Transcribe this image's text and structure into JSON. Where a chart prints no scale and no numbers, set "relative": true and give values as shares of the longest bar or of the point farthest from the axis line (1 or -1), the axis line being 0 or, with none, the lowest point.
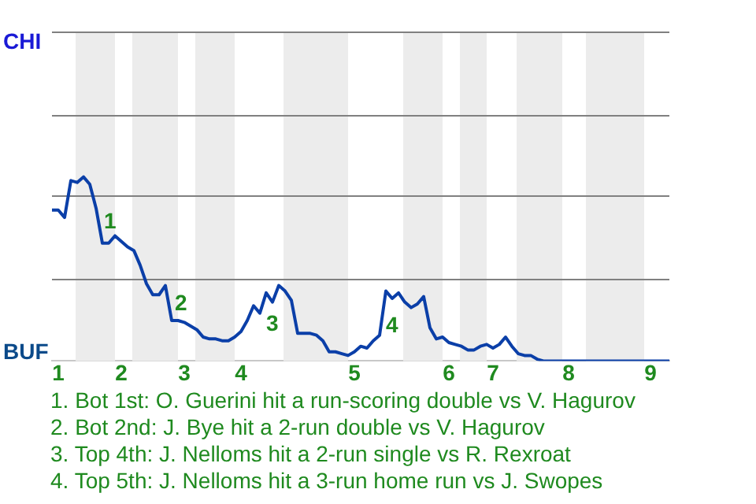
{
  "chart_data": {
    "type": "line",
    "relative": true,
    "categories": [
      null,
      "1",
      null,
      null,
      null,
      null,
      null,
      null,
      null,
      null,
      null,
      "2",
      null,
      null,
      null,
      null,
      null,
      null,
      null,
      null,
      null,
      "3",
      null,
      null,
      null,
      null,
      null,
      null,
      null,
      null,
      "4",
      null,
      null,
      null,
      null,
      null,
      null,
      null,
      null,
      null,
      null,
      null,
      null,
      null,
      null,
      null,
      null,
      null,
      "5",
      null,
      null,
      null,
      null,
      null,
      null,
      null,
      null,
      null,
      null,
      null,
      null,
      null,
      null,
      "6",
      null,
      null,
      null,
      null,
      null,
      null,
      "7",
      null,
      null,
      null,
      null,
      null,
      null,
      null,
      null,
      null,
      null,
      null,
      "8",
      null,
      null,
      null,
      null,
      null,
      null,
      null,
      null,
      null,
      null,
      null,
      null,
      "9",
      null,
      null,
      null
    ],
    "series": [
      {
        "color": "#0b3fa8",
        "values": [
          0.82,
          0.82,
          0.78,
          0.98,
          0.97,
          1,
          0.96,
          0.83,
          0.64,
          0.64,
          0.68,
          0.65,
          0.62,
          0.6,
          0.52,
          0.42,
          0.36,
          0.36,
          0.41,
          0.22,
          0.22,
          0.21,
          0.19,
          0.17,
          0.13,
          0.12,
          0.12,
          0.11,
          0.11,
          0.13,
          0.16,
          0.22,
          0.3,
          0.26,
          0.37,
          0.32,
          0.41,
          0.38,
          0.33,
          0.15,
          0.15,
          0.15,
          0.14,
          0.11,
          0.05,
          0.05,
          0.04,
          0.03,
          0.05,
          0.08,
          0.07,
          0.11,
          0.14,
          0.38,
          0.34,
          0.37,
          0.32,
          0.29,
          0.31,
          0.35,
          0.18,
          0.12,
          0.13,
          0.1,
          0.09,
          0.08,
          0.06,
          0.06,
          0.08,
          0.09,
          0.07,
          0.09,
          0.13,
          0.08,
          0.04,
          0.03,
          0.03,
          0.01,
          0,
          0,
          0,
          0,
          0,
          0,
          0,
          0,
          0,
          0,
          0,
          0,
          0,
          0,
          0,
          0,
          0,
          0,
          0,
          0,
          0
        ]
      }
    ],
    "ref_lines": [
      {
        "axis": "y",
        "value": 0.45,
        "color": "#808080",
        "line_style": "solid"
      },
      {
        "axis": "y",
        "value": 0.9,
        "color": "#808080",
        "line_style": "solid"
      },
      {
        "axis": "y",
        "value": 1.34,
        "color": "#808080",
        "line_style": "solid"
      },
      {
        "axis": "y",
        "value": 1.79,
        "color": "#808080",
        "line_style": "solid"
      }
    ],
    "legend": false,
    "marker": "none",
    "line_style": "solid",
    "annotations": [
      "CHI",
      "BUF",
      "1",
      "2",
      "3",
      "4",
      "1. Bot 1st: O. Guerini hit a run-scoring double vs V. Hagurov",
      "2. Bot 2nd: J. Bye hit a 2-run double vs V. Hagurov",
      "3. Top 4th: J. Nelloms hit a 2-run single vs R. Rexroat",
      "4. Top 5th: J. Nelloms hit a 3-run home run vs J. Swopes"
    ]
  }
}
